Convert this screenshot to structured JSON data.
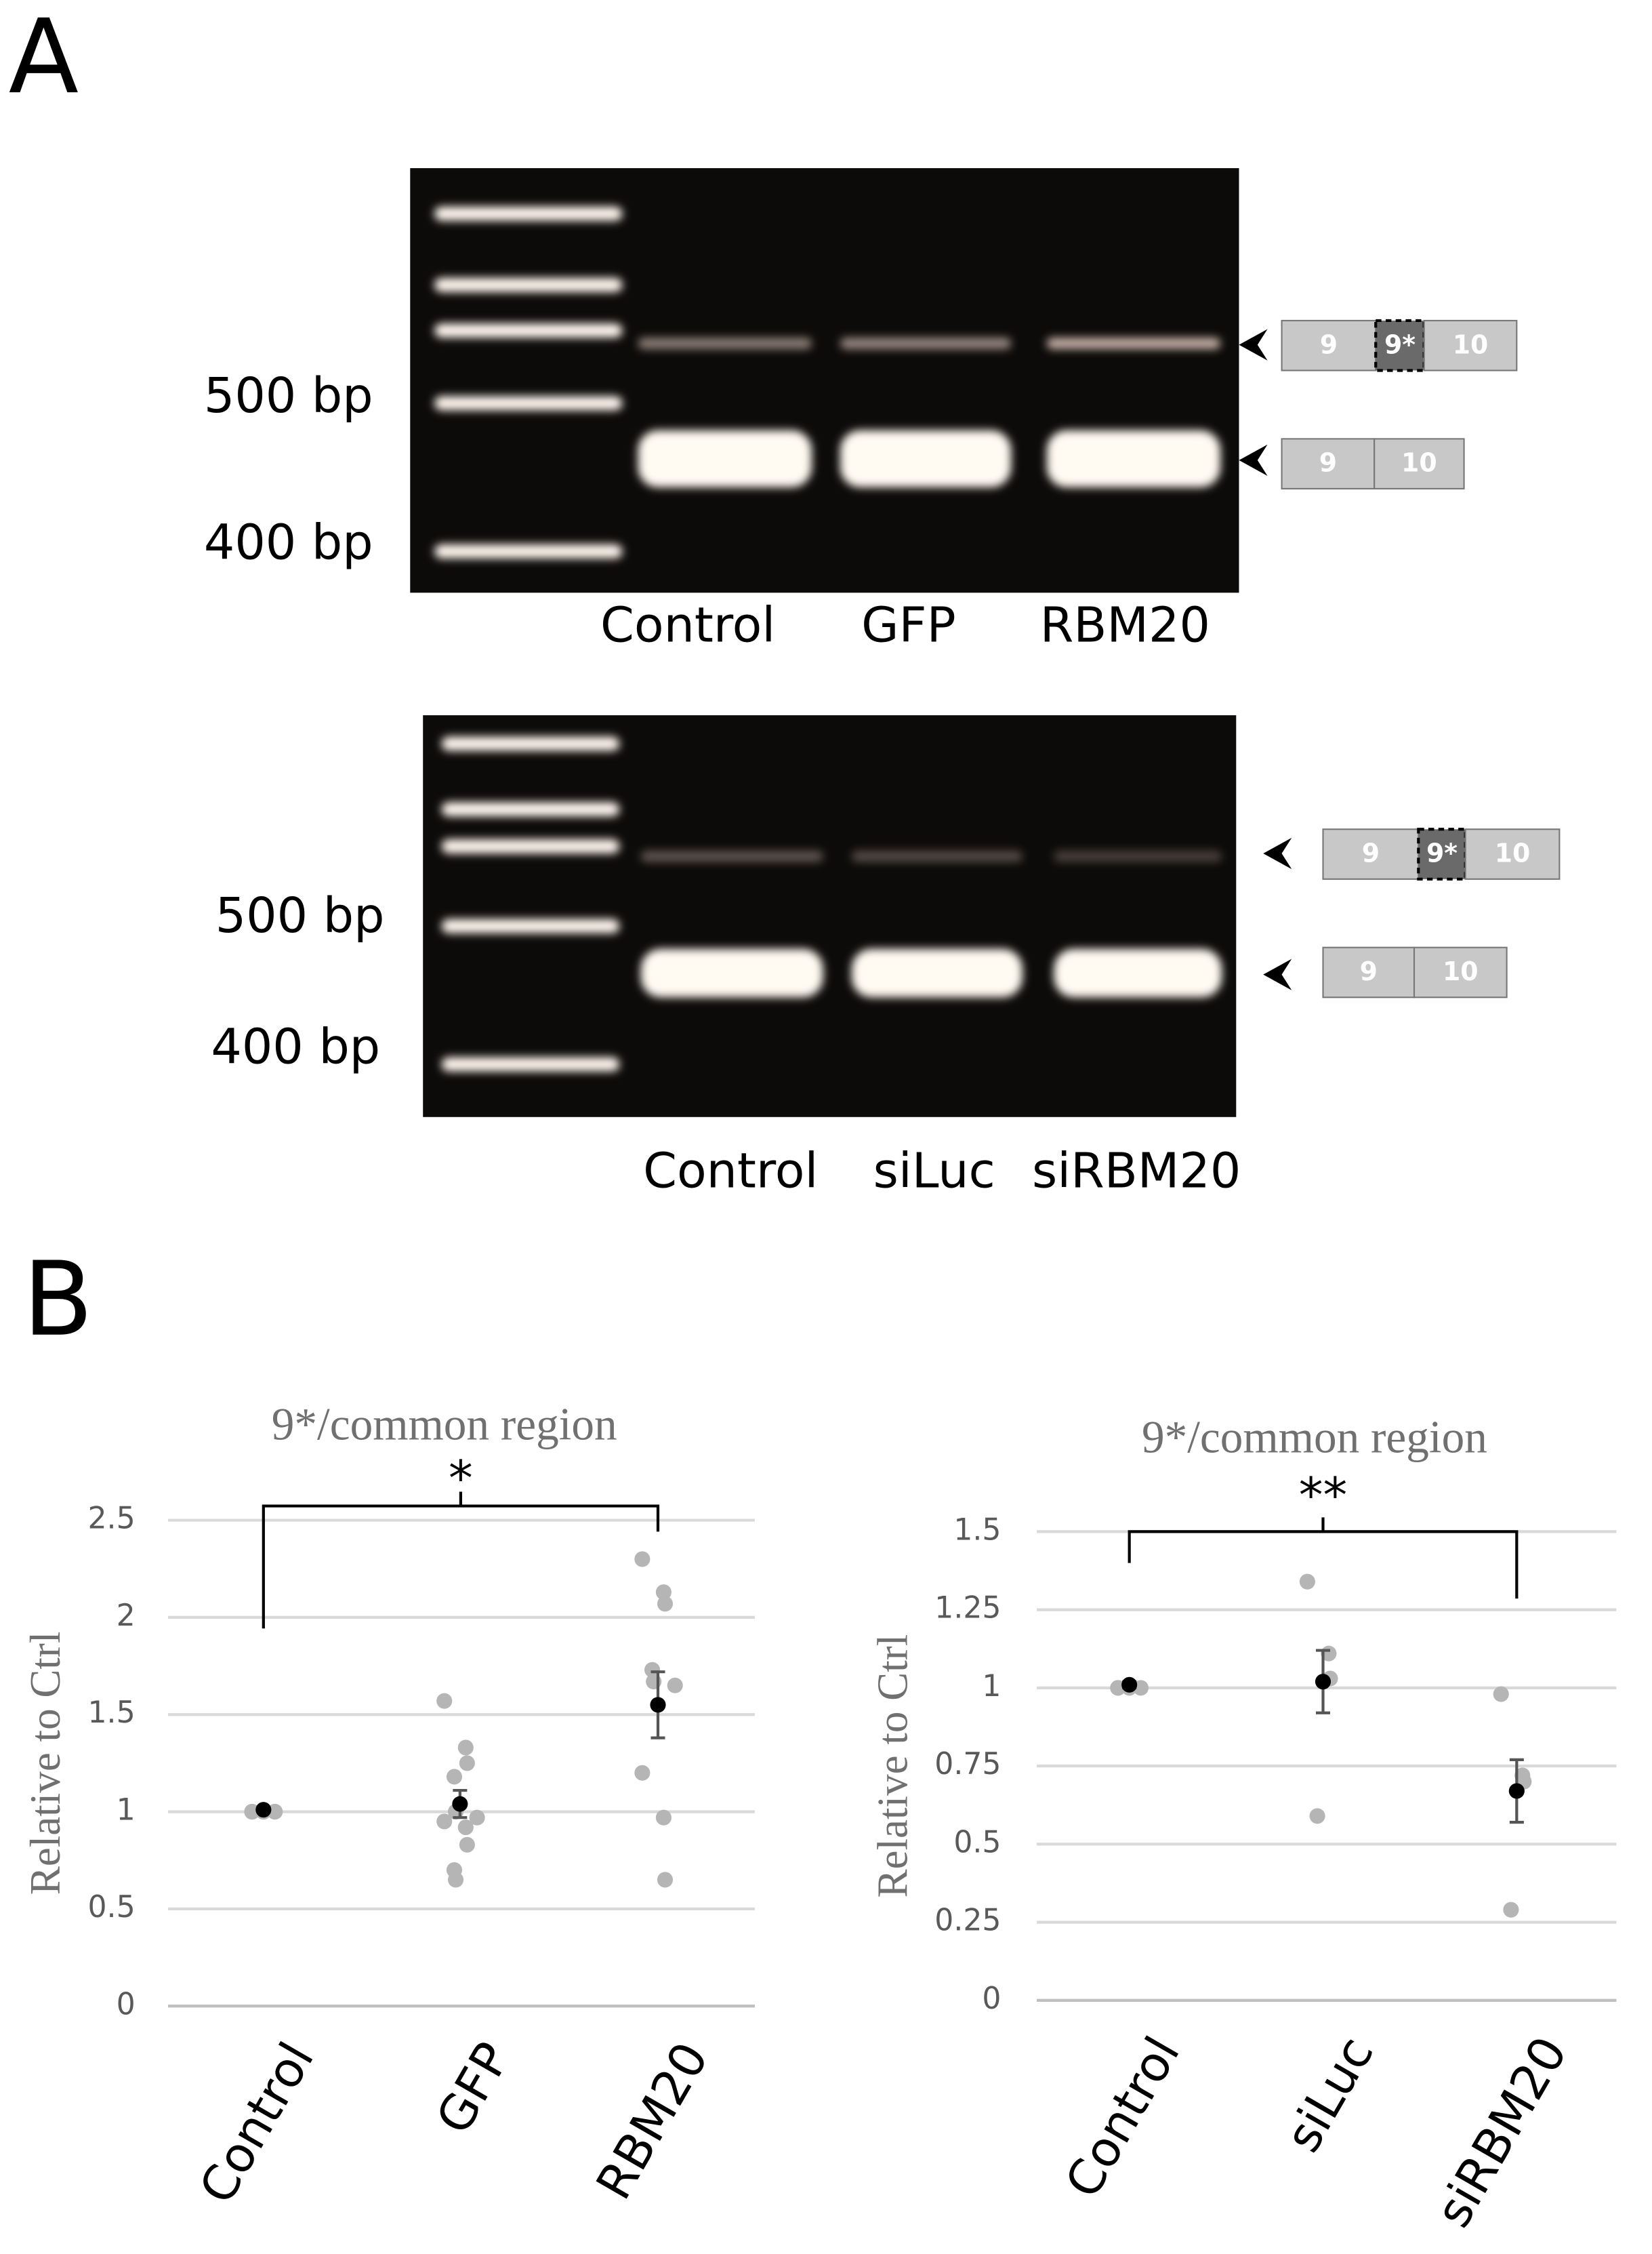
{
  "panel_labels": [
    "A",
    "B"
  ],
  "gels": [
    {
      "size_labels": [
        "500 bp",
        "400 bp"
      ],
      "lanes": [
        "Control",
        "GFP",
        "RBM20"
      ],
      "exon_long": [
        "9",
        "9*",
        "10"
      ],
      "exon_short": [
        "9",
        "10"
      ]
    },
    {
      "size_labels": [
        "500 bp",
        "400 bp"
      ],
      "lanes": [
        "Control",
        "siLuc",
        "siRBM20"
      ],
      "exon_long": [
        "9",
        "9*",
        "10"
      ],
      "exon_short": [
        "9",
        "10"
      ]
    }
  ],
  "chart_data": [
    {
      "type": "dot",
      "title": "9*/common region",
      "y_label": "Relative to Ctrl",
      "significance": "*",
      "categories": [
        "Control",
        "GFP",
        "RBM20"
      ],
      "points": [
        [
          1,
          1,
          1,
          1,
          1,
          1,
          1,
          1,
          1,
          1
        ],
        [
          1.57,
          1.33,
          1.25,
          1.18,
          1.0,
          0.97,
          0.95,
          0.92,
          0.83,
          0.7,
          0.65
        ],
        [
          2.3,
          2.13,
          2.07,
          1.73,
          1.67,
          1.65,
          1.2,
          0.97,
          0.65
        ]
      ],
      "means": [
        1.01,
        1.04,
        1.55
      ],
      "errors": [
        0.01,
        0.07,
        0.17
      ],
      "point_color": "#b5b5b5",
      "mean_color": "#000000",
      "ylim": [
        0,
        2.5
      ],
      "yticks": [
        0,
        0.5,
        1,
        1.5,
        2,
        2.5
      ],
      "grid": true
    },
    {
      "type": "dot",
      "title": "9*/common region",
      "y_label": "Relative to Ctrl",
      "significance": "**",
      "categories": [
        "Control",
        "siLuc",
        "siRBM20"
      ],
      "points": [
        [
          1,
          1,
          1,
          1
        ],
        [
          1.34,
          1.11,
          1.03,
          0.59
        ],
        [
          0.98,
          0.72,
          0.7,
          0.29
        ]
      ],
      "means": [
        1.01,
        1.02,
        0.67
      ],
      "errors": [
        0.01,
        0.1,
        0.1
      ],
      "point_color": "#b5b5b5",
      "mean_color": "#000000",
      "ylim": [
        0,
        1.5
      ],
      "yticks": [
        0,
        0.25,
        0.5,
        0.75,
        1,
        1.25,
        1.5
      ],
      "grid": true
    }
  ]
}
